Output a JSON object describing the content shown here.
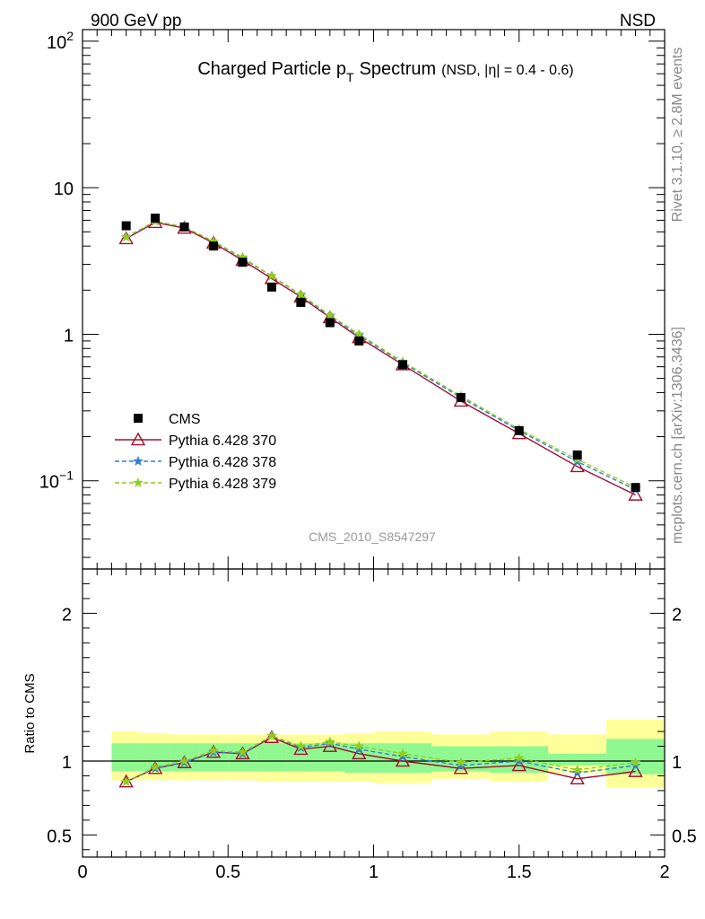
{
  "header": {
    "left": "900 GeV pp",
    "right": "NSD"
  },
  "side_labels": {
    "rivet": "Rivet 3.1.10, ≥ 2.8M events",
    "mcplots": "mcplots.cern.ch [arXiv:1306.3436]"
  },
  "chart_data": {
    "type": "scatter",
    "title": "Charged Particle p",
    "title_sub": "T",
    "title_word": "Spectrum",
    "title_note": "(NSD, |η| = 0.4 - 0.6)",
    "analysis_id": "CMS_2010_S8547297",
    "xlim": [
      0,
      2
    ],
    "x_ticks": [
      "0",
      "0.5",
      "1",
      "1.5",
      "2"
    ],
    "main": {
      "yscale": "log",
      "ylim": [
        0.025,
        120
      ],
      "y_ticks": [
        {
          "value": 0.1,
          "base": "10",
          "exp": "−1"
        },
        {
          "value": 1,
          "base": "1",
          "exp": ""
        },
        {
          "value": 10,
          "base": "10",
          "exp": ""
        },
        {
          "value": 100,
          "base": "10",
          "exp": "2"
        }
      ]
    },
    "ratio": {
      "ylabel": "Ratio to CMS",
      "ylim": [
        0.35,
        2.3
      ],
      "y_ticks": [
        "0.5",
        "1",
        "2"
      ],
      "y_tick_values": [
        0.5,
        1,
        2
      ]
    },
    "x": [
      0.15,
      0.25,
      0.35,
      0.45,
      0.55,
      0.65,
      0.75,
      0.85,
      0.95,
      1.1,
      1.3,
      1.5,
      1.7,
      1.9
    ],
    "bin_edges": [
      0.1,
      0.2,
      0.3,
      0.4,
      0.5,
      0.6,
      0.7,
      0.8,
      0.9,
      1.0,
      1.2,
      1.4,
      1.6,
      1.8,
      2.0
    ],
    "series": [
      {
        "name": "CMS",
        "marker": "square",
        "color": "#000000",
        "values": [
          5.5,
          6.2,
          5.4,
          4.0,
          3.1,
          2.1,
          1.65,
          1.2,
          0.9,
          0.62,
          0.37,
          0.22,
          0.15,
          0.09
        ],
        "ratio": [
          1,
          1,
          1,
          1,
          1,
          1,
          1,
          1,
          1,
          1,
          1,
          1,
          1,
          1
        ]
      },
      {
        "name": "Pythia 6.428 370",
        "marker": "triangle",
        "color": "#a0102e",
        "line": "solid",
        "values": [
          4.5,
          5.8,
          5.3,
          4.2,
          3.2,
          2.4,
          1.8,
          1.3,
          0.95,
          0.62,
          0.35,
          0.21,
          0.125,
          0.08
        ],
        "ratio": [
          0.86,
          0.95,
          0.99,
          1.06,
          1.05,
          1.16,
          1.08,
          1.1,
          1.05,
          1.0,
          0.95,
          0.97,
          0.88,
          0.93
        ]
      },
      {
        "name": "Pythia 6.428 378",
        "marker": "star",
        "color": "#2f7fd8",
        "line": "dashed",
        "values": [
          4.6,
          5.9,
          5.4,
          4.3,
          3.3,
          2.5,
          1.85,
          1.33,
          0.98,
          0.64,
          0.37,
          0.22,
          0.135,
          0.087
        ],
        "ratio": [
          0.86,
          0.95,
          0.99,
          1.06,
          1.05,
          1.17,
          1.09,
          1.12,
          1.08,
          1.03,
          0.97,
          1.0,
          0.92,
          0.97
        ]
      },
      {
        "name": "Pythia 6.428 379",
        "marker": "star",
        "color": "#8fcf1c",
        "line": "dashed",
        "values": [
          4.6,
          5.9,
          5.4,
          4.3,
          3.35,
          2.5,
          1.87,
          1.35,
          1.0,
          0.65,
          0.38,
          0.225,
          0.14,
          0.09
        ],
        "ratio": [
          0.86,
          0.96,
          1.0,
          1.07,
          1.06,
          1.17,
          1.1,
          1.13,
          1.1,
          1.05,
          0.99,
          1.02,
          0.94,
          0.99
        ]
      }
    ],
    "ratio_bands": {
      "yellow": [
        [
          0.87,
          1.2
        ],
        [
          0.87,
          1.19
        ],
        [
          0.87,
          1.18
        ],
        [
          0.87,
          1.18
        ],
        [
          0.87,
          1.18
        ],
        [
          0.86,
          1.18
        ],
        [
          0.86,
          1.18
        ],
        [
          0.86,
          1.18
        ],
        [
          0.86,
          1.19
        ],
        [
          0.85,
          1.2
        ],
        [
          0.88,
          1.18
        ],
        [
          0.86,
          1.2
        ],
        [
          0.92,
          1.18
        ],
        [
          0.82,
          1.28
        ]
      ],
      "green": [
        [
          0.93,
          1.12
        ],
        [
          0.93,
          1.12
        ],
        [
          0.93,
          1.12
        ],
        [
          0.93,
          1.12
        ],
        [
          0.93,
          1.12
        ],
        [
          0.93,
          1.12
        ],
        [
          0.93,
          1.12
        ],
        [
          0.93,
          1.12
        ],
        [
          0.92,
          1.12
        ],
        [
          0.92,
          1.12
        ],
        [
          0.93,
          1.1
        ],
        [
          0.92,
          1.1
        ],
        [
          0.97,
          1.05
        ],
        [
          0.91,
          1.15
        ]
      ],
      "yellow_color": "#ffff99",
      "green_color": "#90f890"
    }
  }
}
